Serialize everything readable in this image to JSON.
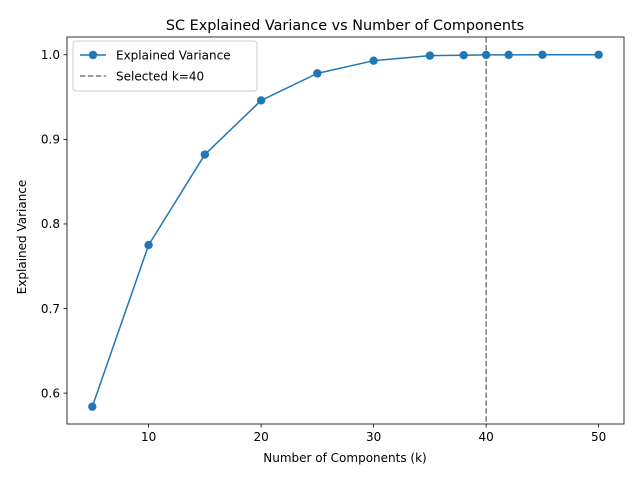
{
  "chart_data": {
    "type": "line",
    "title": "SC Explained Variance vs Number of Components",
    "xlabel": "Number of Components (k)",
    "ylabel": "Explained Variance",
    "xlim": [
      2.75,
      52.25
    ],
    "ylim": [
      0.5635,
      1.021
    ],
    "xticks": [
      10,
      20,
      30,
      40,
      50
    ],
    "yticks": [
      0.6,
      0.7,
      0.8,
      0.9,
      1.0
    ],
    "xtick_labels": [
      "10",
      "20",
      "30",
      "40",
      "50"
    ],
    "ytick_labels": [
      "0.6",
      "0.7",
      "0.8",
      "0.9",
      "1.0"
    ],
    "grid": false,
    "legend_position": "upper-left",
    "series": [
      {
        "name": "Explained Variance",
        "color": "#1f77b4",
        "marker": "circle",
        "x": [
          5,
          10,
          15,
          20,
          25,
          30,
          35,
          38,
          40,
          42,
          45,
          50
        ],
        "y": [
          0.584,
          0.775,
          0.882,
          0.946,
          0.978,
          0.993,
          0.999,
          0.9995,
          0.9998,
          0.9999,
          1.0,
          1.0
        ]
      }
    ],
    "reference_lines": [
      {
        "name": "Selected k=40",
        "orientation": "vertical",
        "x": 40,
        "color": "#808080",
        "style": "dashed"
      }
    ]
  }
}
